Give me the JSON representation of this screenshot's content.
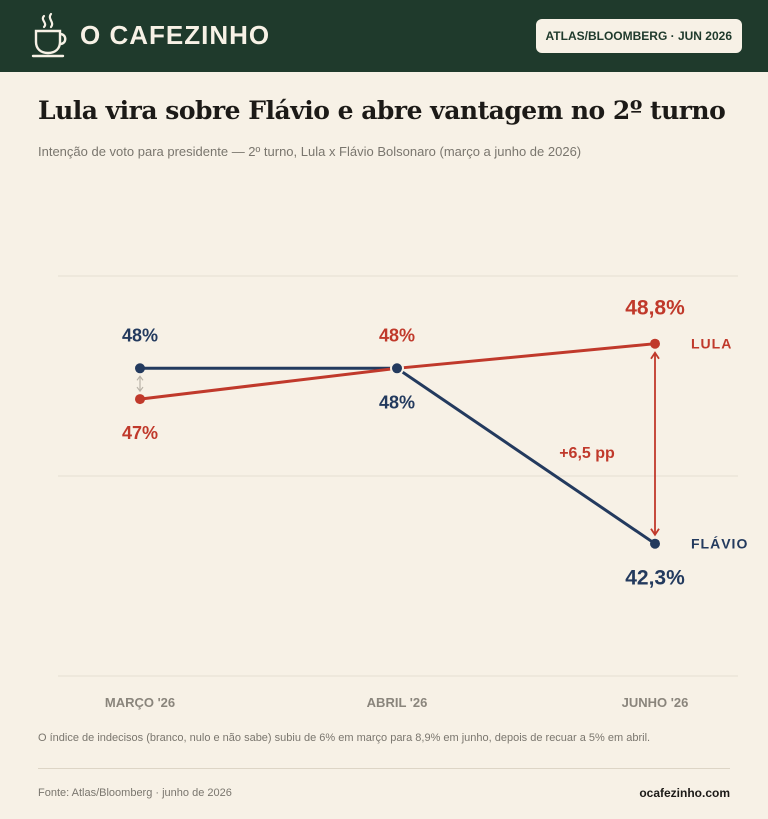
{
  "header": {
    "brand": "O CAFEZINHO",
    "badge": "ATLAS/BLOOMBERG · JUN 2026"
  },
  "title": "Lula vira sobre Flávio e abre vantagem no 2º turno",
  "subtitle": "Intenção de voto para presidente — 2º turno, Lula x Flávio Bolsonaro (março a junho de 2026)",
  "colors": {
    "lula": "#c0392b",
    "flavio": "#233a5e",
    "grid": "#e6dfd2",
    "tick": "#8a857c"
  },
  "chart_data": {
    "type": "line",
    "categories": [
      "MARÇO '26",
      "ABRIL '26",
      "JUNHO '26"
    ],
    "ylim": [
      38,
      51
    ],
    "grid": true,
    "series": [
      {
        "name": "LULA",
        "color": "#c0392b",
        "values": [
          47,
          48,
          48.8
        ],
        "labels": [
          "47%",
          "48%",
          "48,8%"
        ]
      },
      {
        "name": "FLÁVIO",
        "color": "#233a5e",
        "values": [
          48,
          48,
          42.3
        ],
        "labels": [
          "48%",
          "48%",
          "42,3%"
        ]
      }
    ],
    "annotation": "+6,5 pp"
  },
  "footnote": "O índice de indecisos (branco, nulo e não sabe) subiu de 6% em março para 8,9% em junho, depois de recuar a 5% em abril.",
  "source": "Fonte: Atlas/Bloomberg · junho de 2026",
  "site": "ocafezinho.com"
}
